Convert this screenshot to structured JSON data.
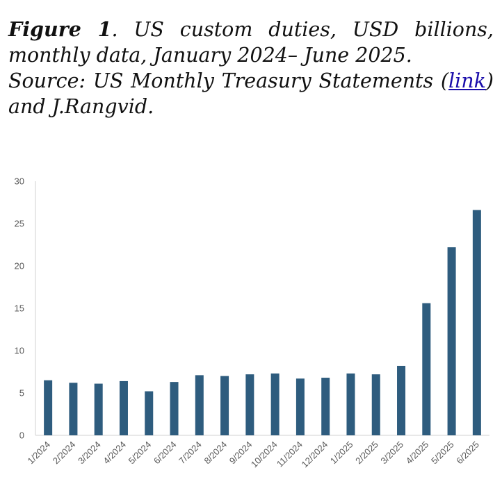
{
  "caption": {
    "figure_label": "Figure 1",
    "title_text": ". US custom duties, USD billions, monthly data, January 2024– June 2025.",
    "source_prefix": "Source: US Monthly Treasury Statements (",
    "link_text": "link",
    "source_suffix": ") and J.Rangvid."
  },
  "chart_data": {
    "type": "bar",
    "categories": [
      "1/2024",
      "2/2024",
      "3/2024",
      "4/2024",
      "5/2024",
      "6/2024",
      "7/2024",
      "8/2024",
      "9/2024",
      "10/2024",
      "11/2024",
      "12/2024",
      "1/2025",
      "2/2025",
      "3/2025",
      "4/2025",
      "5/2025",
      "6/2025"
    ],
    "values": [
      6.5,
      6.2,
      6.1,
      6.4,
      5.2,
      6.3,
      7.1,
      7.0,
      7.2,
      7.3,
      6.7,
      6.8,
      7.3,
      7.2,
      8.2,
      15.6,
      22.2,
      26.6
    ],
    "ylim": [
      0,
      30
    ],
    "yticks": [
      0,
      5,
      10,
      15,
      20,
      25,
      30
    ],
    "grid": false,
    "legend": "none",
    "colors": {
      "bar": "#2e5c7e",
      "axis": "#d0d0d0",
      "tick_text": "#595959"
    }
  }
}
